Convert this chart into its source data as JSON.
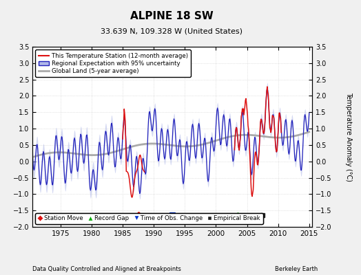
{
  "title": "ALPINE 18 SW",
  "subtitle": "33.639 N, 109.328 W (United States)",
  "ylabel": "Temperature Anomaly (°C)",
  "footer_left": "Data Quality Controlled and Aligned at Breakpoints",
  "footer_right": "Berkeley Earth",
  "xlim": [
    1970.5,
    2015.5
  ],
  "ylim": [
    -2.0,
    3.5
  ],
  "yticks": [
    -2,
    -1.5,
    -1,
    -0.5,
    0,
    0.5,
    1,
    1.5,
    2,
    2.5,
    3,
    3.5
  ],
  "xticks": [
    1975,
    1980,
    1985,
    1990,
    1995,
    2000,
    2005,
    2010,
    2015
  ],
  "bg_color": "#f0f0f0",
  "plot_bg_color": "#ffffff",
  "marker_y": -1.65,
  "station_move_x": 1987.5,
  "record_gap_x": 2003.5,
  "obs_change_x": 1993.0,
  "empirical_break_x": 2007.5,
  "red_segment1_start": 1985.0,
  "red_segment1_end": 1988.5,
  "red_segment2_start": 2003.0,
  "red_segment2_end": 2010.5
}
